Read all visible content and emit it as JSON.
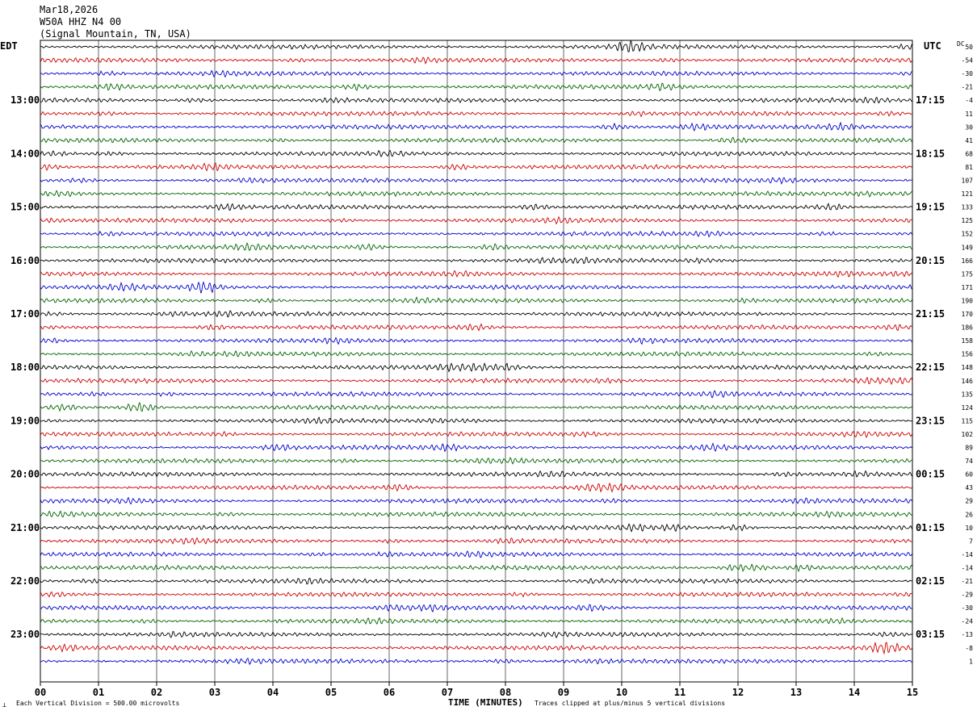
{
  "header": {
    "date": "Mar18,2026",
    "station": "W50A HHZ N4 00",
    "location": "(Signal Mountain, TN, USA)"
  },
  "left_tz": "EDT",
  "right_tz": "UTC",
  "dc_label": "DC",
  "footer": {
    "scale_note": "Each Vertical Division =  500.00 microvolts",
    "x_axis_title": "TIME (MINUTES)",
    "clip_note": "Traces clipped at plus/minus 5 vertical divisions"
  },
  "chart_data": {
    "type": "line",
    "title": "",
    "xlabel": "TIME (MINUTES)",
    "xlim": [
      0,
      15
    ],
    "x_ticks": [
      "00",
      "01",
      "02",
      "03",
      "04",
      "05",
      "06",
      "07",
      "08",
      "09",
      "10",
      "11",
      "12",
      "13",
      "14",
      "15"
    ],
    "rows_per_hour": 4,
    "trace_colors": [
      "#000000",
      "#cc0000",
      "#0000cc",
      "#006400"
    ],
    "left_hour_labels": [
      "13:00",
      "14:00",
      "15:00",
      "16:00",
      "17:00",
      "18:00",
      "19:00",
      "20:00",
      "21:00",
      "22:00",
      "23:00"
    ],
    "right_hour_labels": [
      "17:15",
      "18:15",
      "19:15",
      "20:15",
      "21:15",
      "22:15",
      "23:15",
      "00:15",
      "01:15",
      "02:15",
      "03:15"
    ],
    "dc_offsets": [
      "50",
      "-54",
      "-30",
      "-21",
      "-4",
      "11",
      "30",
      "41",
      "68",
      "81",
      "107",
      "121",
      "133",
      "125",
      "152",
      "149",
      "166",
      "175",
      "171",
      "190",
      "170",
      "186",
      "158",
      "156",
      "148",
      "146",
      "135",
      "124",
      "115",
      "102",
      "89",
      "74",
      "60",
      "43",
      "29",
      "26",
      "10",
      "7",
      "-14",
      "-14",
      "-21",
      "-29",
      "-30",
      "-24",
      "-13",
      "-8",
      "1"
    ]
  }
}
